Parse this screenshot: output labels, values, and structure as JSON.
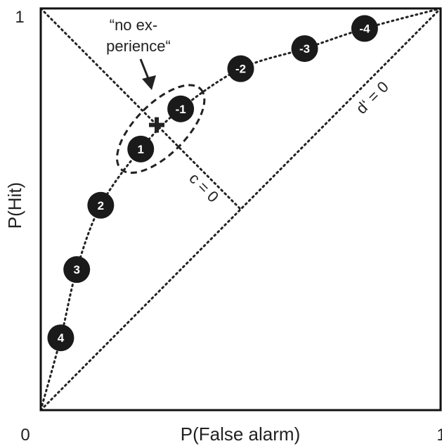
{
  "chart_data": {
    "type": "scatter",
    "xlabel": "P(False alarm)",
    "ylabel": "P(Hit)",
    "xlim": [
      0,
      1
    ],
    "ylim": [
      0,
      1
    ],
    "x_tick_labels": [
      "0",
      "1"
    ],
    "y_tick_labels": [
      "1"
    ],
    "grid": false,
    "series": [
      {
        "labels": [
          "4",
          "3",
          "2",
          "1",
          "-1",
          "-2",
          "-3",
          "-4"
        ],
        "x": [
          0.05,
          0.09,
          0.15,
          0.25,
          0.35,
          0.5,
          0.66,
          0.81
        ],
        "y": [
          0.18,
          0.35,
          0.51,
          0.65,
          0.75,
          0.85,
          0.9,
          0.95
        ]
      }
    ],
    "no_experience_point": {
      "x": 0.29,
      "y": 0.71
    },
    "reference_lines": [
      {
        "label": "d‘ = 0",
        "from": [
          0,
          0
        ],
        "to": [
          1,
          1
        ]
      },
      {
        "label": "c = 0",
        "from": [
          0,
          1
        ],
        "to": [
          0.5,
          0.5
        ]
      }
    ],
    "annotation": {
      "line1": "“no ex-",
      "line2": "perience“"
    }
  }
}
